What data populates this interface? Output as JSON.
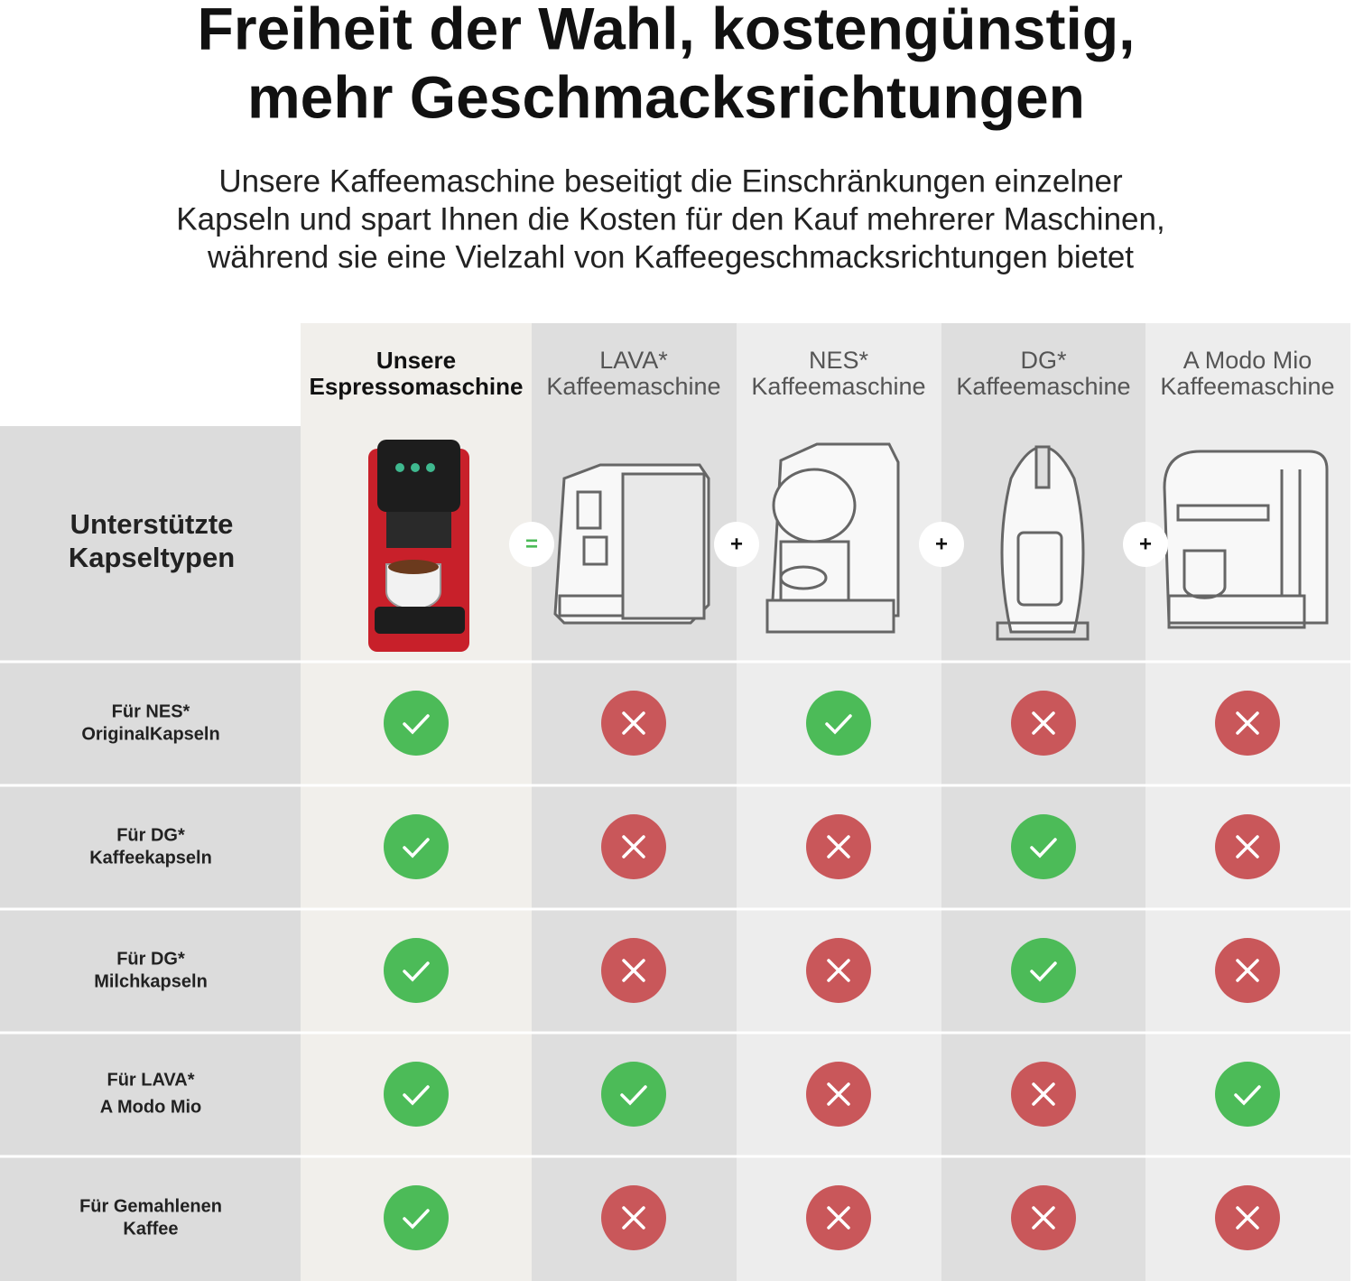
{
  "header": {
    "title": [
      "Freiheit der Wahl, kostengünstig,",
      "mehr Geschmacksrichtungen"
    ],
    "subtitle": [
      "Unsere Kaffeemaschine beseitigt die Einschränkungen einzelner",
      "Kapseln und spart Ihnen die Kosten für den Kauf mehrerer Maschinen,",
      "während sie eine Vielzahl von Kaffeegeschmacksrichtungen bietet"
    ]
  },
  "table": {
    "columns": [
      {
        "label": [
          "Unsere",
          "Espressomaschine"
        ]
      },
      {
        "label": [
          "LAVA*",
          "Kaffeemaschine"
        ]
      },
      {
        "label": [
          "NES*",
          "Kaffeemaschine"
        ]
      },
      {
        "label": [
          "DG*",
          "Kaffeemaschine"
        ]
      },
      {
        "label": [
          "A Modo Mio",
          "Kaffeemaschine"
        ]
      }
    ],
    "image_row_label": [
      "Unterstützte",
      "Kapseltypen"
    ],
    "operators": [
      "=",
      "+",
      "+",
      "+"
    ],
    "rows": [
      {
        "label": [
          "Für NES*",
          "OriginalKapseln"
        ],
        "supported": [
          true,
          false,
          true,
          false,
          false
        ]
      },
      {
        "label": [
          "Für DG*",
          "Kaffeekapseln"
        ],
        "supported": [
          true,
          false,
          false,
          true,
          false
        ]
      },
      {
        "label": [
          "Für DG*",
          "Milchkapseln"
        ],
        "supported": [
          true,
          false,
          false,
          true,
          false
        ]
      },
      {
        "label": [
          "Für LAVA*",
          "A Modo Mio"
        ],
        "supported": [
          true,
          true,
          false,
          false,
          true
        ]
      },
      {
        "label": [
          "Für Gemahlenen",
          "Kaffee"
        ],
        "supported": [
          true,
          false,
          false,
          false,
          false
        ]
      }
    ]
  }
}
